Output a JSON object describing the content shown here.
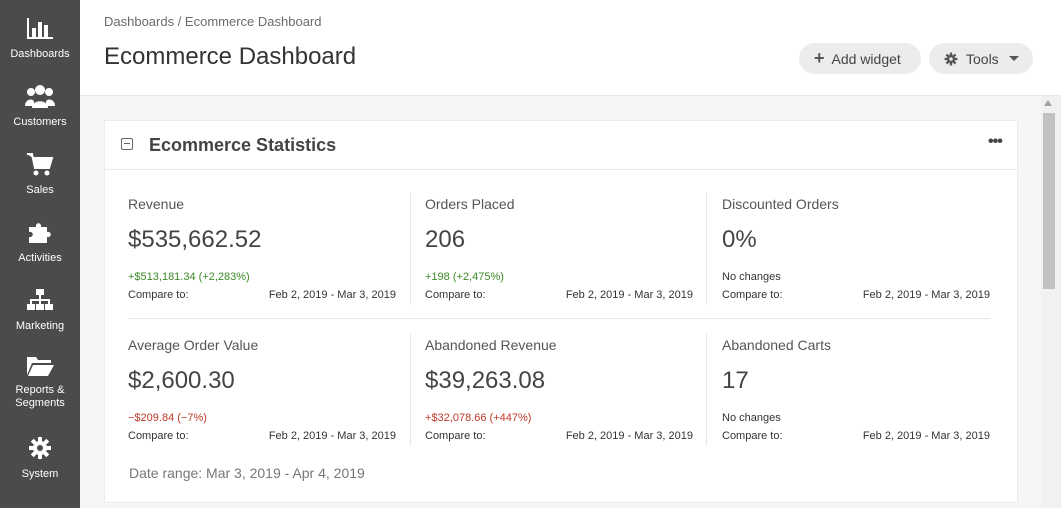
{
  "sidebar": {
    "items": [
      {
        "label": "Dashboards",
        "icon": "bar-chart-icon"
      },
      {
        "label": "Customers",
        "icon": "users-icon"
      },
      {
        "label": "Sales",
        "icon": "cart-icon"
      },
      {
        "label": "Activities",
        "icon": "puzzle-icon"
      },
      {
        "label": "Marketing",
        "icon": "sitemap-icon"
      },
      {
        "label": "Reports &",
        "label2": "Segments",
        "icon": "folder-icon"
      },
      {
        "label": "System",
        "icon": "gear-icon"
      }
    ]
  },
  "header": {
    "breadcrumb": "Dashboards / Ecommerce Dashboard",
    "title": "Ecommerce Dashboard",
    "add_widget": "Add widget",
    "tools": "Tools"
  },
  "widget": {
    "title": "Ecommerce Statistics",
    "stats": [
      {
        "name": "Revenue",
        "value": "$535,662.52",
        "change": "+$513,181.34 (+2,283%)",
        "tone": "pos",
        "compare": "Compare to:",
        "range": "Feb 2, 2019 - Mar 3, 2019"
      },
      {
        "name": "Orders Placed",
        "value": "206",
        "change": "+198 (+2,475%)",
        "tone": "pos",
        "compare": "Compare to:",
        "range": "Feb 2, 2019 - Mar 3, 2019"
      },
      {
        "name": "Discounted Orders",
        "value": "0%",
        "change": "No changes",
        "tone": "neu",
        "compare": "Compare to:",
        "range": "Feb 2, 2019 - Mar 3, 2019"
      },
      {
        "name": "Average Order Value",
        "value": "$2,600.30",
        "change": "−$209.84 (−7%)",
        "tone": "neg",
        "compare": "Compare to:",
        "range": "Feb 2, 2019 - Mar 3, 2019"
      },
      {
        "name": "Abandoned Revenue",
        "value": "$39,263.08",
        "change": "+$32,078.66 (+447%)",
        "tone": "neg",
        "compare": "Compare to:",
        "range": "Feb 2, 2019 - Mar 3, 2019"
      },
      {
        "name": "Abandoned Carts",
        "value": "17",
        "change": "No changes",
        "tone": "neu",
        "compare": "Compare to:",
        "range": "Feb 2, 2019 - Mar 3, 2019"
      }
    ],
    "date_range": "Date range: Mar 3, 2019 - Apr 4, 2019"
  },
  "colors": {
    "sidebar_bg": "#4b4b4b",
    "positive": "#3c8a25",
    "negative": "#c0392b"
  }
}
